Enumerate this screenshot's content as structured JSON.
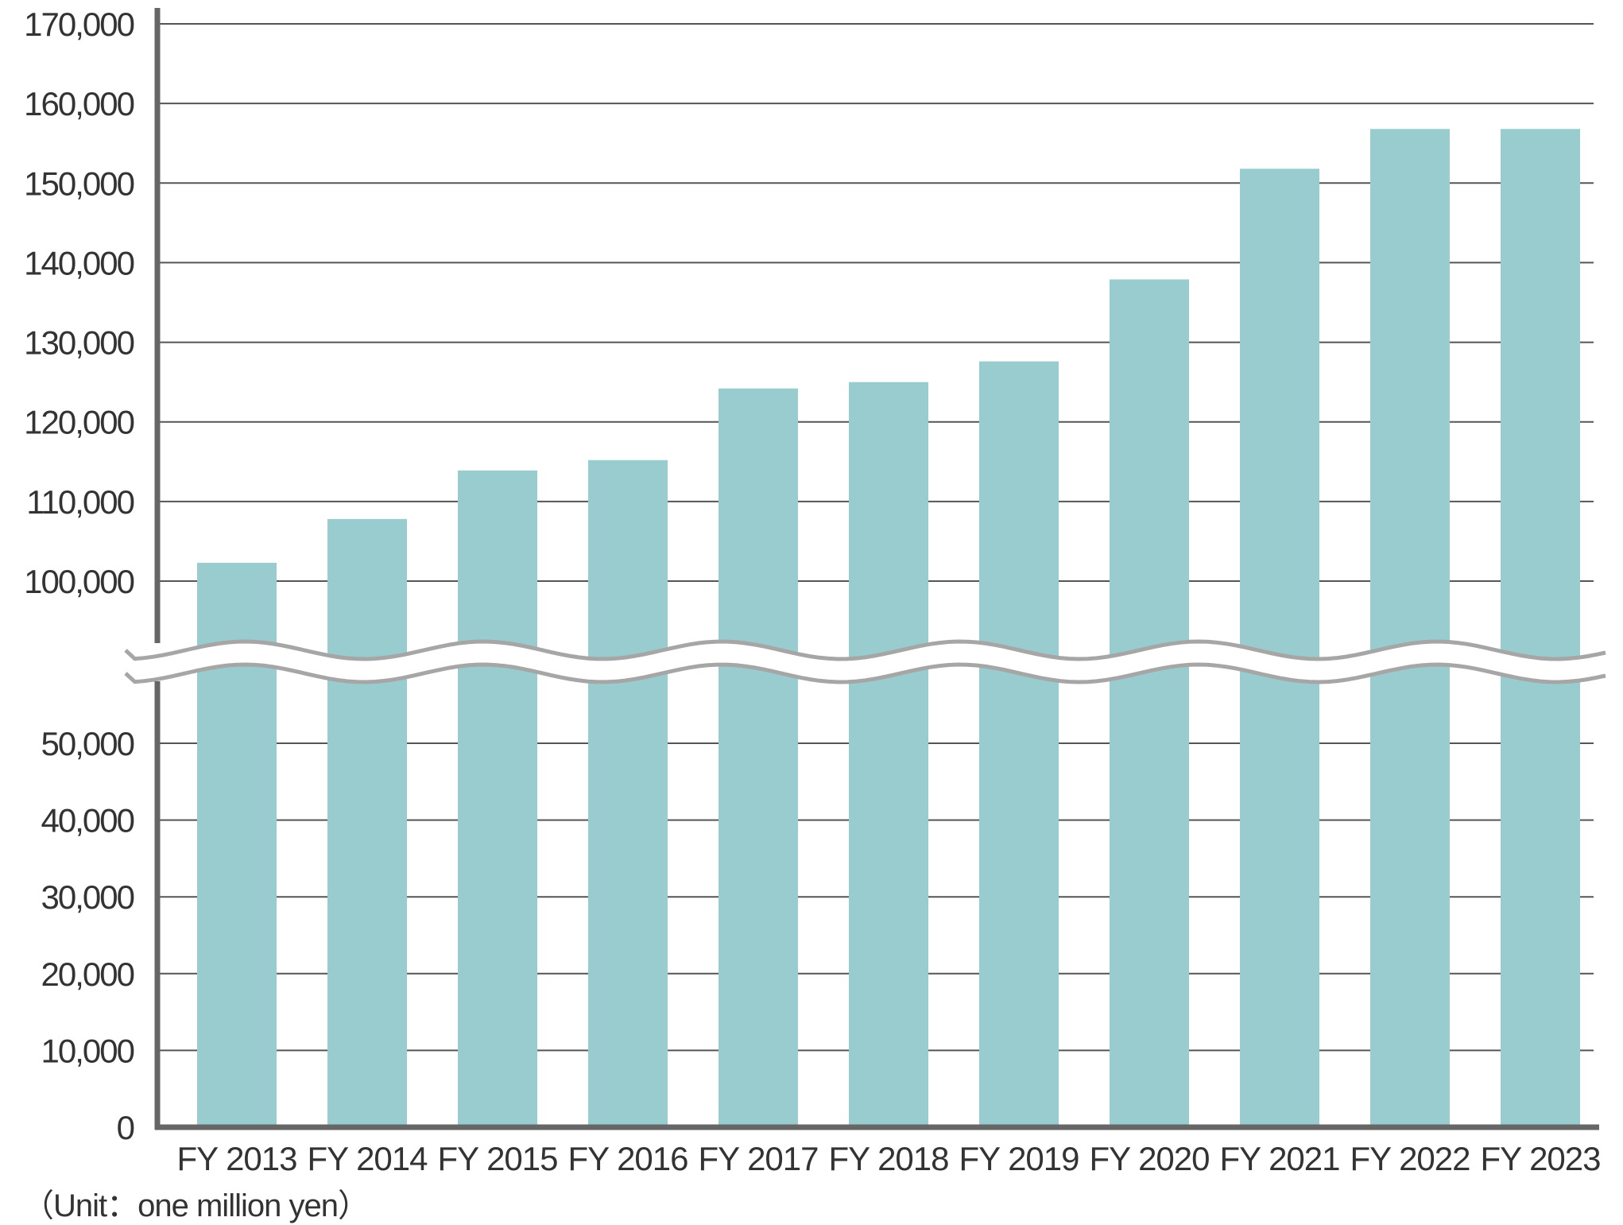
{
  "chart_data": {
    "type": "bar",
    "categories": [
      "FY 2013",
      "FY 2014",
      "FY 2015",
      "FY 2016",
      "FY 2017",
      "FY 2018",
      "FY 2019",
      "FY 2020",
      "FY 2021",
      "FY 2022",
      "FY 2023"
    ],
    "values": [
      102300,
      107800,
      113900,
      115200,
      124200,
      125000,
      127600,
      137900,
      151800,
      156800,
      156800
    ],
    "title": "",
    "xlabel": "",
    "ylabel": "",
    "unit_note": "（Unit：one  million yen）",
    "y_axis": {
      "broken": true,
      "lower_segment": [
        0,
        50000
      ],
      "upper_segment": [
        100000,
        170000
      ],
      "tick_labels_lower": [
        "0",
        "10,000",
        "20,000",
        "30,000",
        "40,000",
        "50,000"
      ],
      "tick_values_lower": [
        0,
        10000,
        20000,
        30000,
        40000,
        50000
      ],
      "tick_labels_upper": [
        "100,000",
        "110,000",
        "120,000",
        "130,000",
        "140,000",
        "150,000",
        "160,000",
        "170,000"
      ],
      "tick_values_upper": [
        100000,
        110000,
        120000,
        130000,
        140000,
        150000,
        160000,
        170000
      ]
    },
    "grid": true,
    "legend": "none",
    "colors": {
      "bar": "#99cccf",
      "grid": "#555555",
      "axis": "#666666",
      "break_line": "#a6a6a6"
    }
  }
}
